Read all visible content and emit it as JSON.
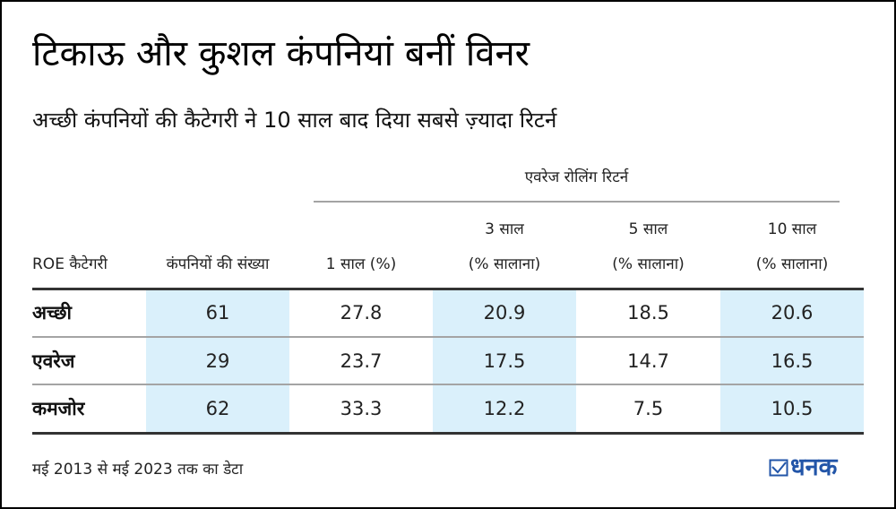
{
  "header": {
    "title": "टिकाऊ और कुशल कंपनियां बनीं विनर",
    "subtitle": "अच्छी कंपनियों की कैटेगरी ने 10 साल बाद दिया सबसे ज़्यादा रिटर्न"
  },
  "table": {
    "group_header": "एवरेज रोलिंग रिटर्न",
    "columns": [
      {
        "line1": "",
        "line2": "ROE कैटेगरी"
      },
      {
        "line1": "",
        "line2": "कंपनियों की संख्या"
      },
      {
        "line1": "",
        "line2": "1 साल (%)"
      },
      {
        "line1": "3 साल",
        "line2": "(% सालाना)"
      },
      {
        "line1": "5 साल",
        "line2": "(% सालाना)"
      },
      {
        "line1": "10 साल",
        "line2": "(% सालाना)"
      }
    ],
    "rows": [
      {
        "category": "अच्छी",
        "companies": "61",
        "y1": "27.8",
        "y3": "20.9",
        "y5": "18.5",
        "y10": "20.6"
      },
      {
        "category": "एवरेज",
        "companies": "29",
        "y1": "23.7",
        "y3": "17.5",
        "y5": "14.7",
        "y10": "16.5"
      },
      {
        "category": "कमजोर",
        "companies": "62",
        "y1": "33.3",
        "y3": "12.2",
        "y5": "7.5",
        "y10": "10.5"
      }
    ],
    "shade_color": "#daf0fb"
  },
  "footer": {
    "note": "मई 2013 से मई 2023 तक का डेटा",
    "brand": "धनक",
    "brand_icon": "checkbox-check-icon",
    "brand_color": "#2255a8"
  }
}
